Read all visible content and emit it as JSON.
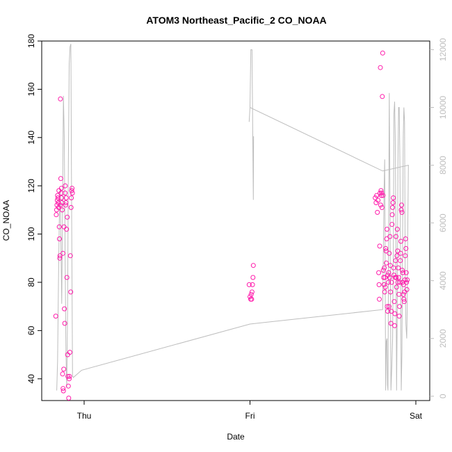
{
  "chart_data": {
    "type": "scatter",
    "title": "ATOM3 Northeast_Pacific_2 CO_NOAA",
    "xlabel": "Date",
    "ylabel": "CO_NOAA",
    "x_ticks": [
      "Thu",
      "Fri",
      "Sat"
    ],
    "ylim": [
      31,
      180
    ],
    "y_ticks": [
      40,
      60,
      80,
      100,
      120,
      140,
      160,
      180
    ],
    "y2lim": [
      -150,
      12300
    ],
    "y2_ticks": [
      0,
      2000,
      4000,
      6000,
      8000,
      10000,
      12000
    ],
    "colors": {
      "points": "#ff1aaa",
      "line": "#bdbdbd",
      "axis": "#000000",
      "right_axis": "#bdbdbd"
    },
    "series": [
      {
        "type": "scatter",
        "axis": "left",
        "values": [
          [
            -0.171,
            66
          ],
          [
            -0.168,
            108
          ],
          [
            -0.166,
            110
          ],
          [
            -0.164,
            112
          ],
          [
            -0.162,
            114
          ],
          [
            -0.16,
            116
          ],
          [
            -0.158,
            115
          ],
          [
            -0.156,
            113
          ],
          [
            -0.154,
            111
          ],
          [
            -0.152,
            118
          ],
          [
            -0.15,
            103
          ],
          [
            -0.149,
            98
          ],
          [
            -0.147,
            90
          ],
          [
            -0.146,
            91
          ],
          [
            -0.144,
            112
          ],
          [
            -0.143,
            156
          ],
          [
            -0.141,
            123
          ],
          [
            -0.139,
            117
          ],
          [
            -0.137,
            119
          ],
          [
            -0.136,
            115
          ],
          [
            -0.134,
            113
          ],
          [
            -0.132,
            110
          ],
          [
            -0.13,
            42
          ],
          [
            -0.128,
            92
          ],
          [
            -0.127,
            36
          ],
          [
            -0.125,
            35
          ],
          [
            -0.123,
            44
          ],
          [
            -0.121,
            103
          ],
          [
            -0.119,
            69
          ],
          [
            -0.117,
            63
          ],
          [
            -0.115,
            117
          ],
          [
            -0.114,
            120
          ],
          [
            -0.112,
            112
          ],
          [
            -0.11,
            113
          ],
          [
            -0.108,
            115
          ],
          [
            -0.106,
            102
          ],
          [
            -0.104,
            82
          ],
          [
            -0.102,
            107
          ],
          [
            -0.1,
            50
          ],
          [
            -0.098,
            41
          ],
          [
            -0.095,
            37
          ],
          [
            -0.093,
            32
          ],
          [
            -0.09,
            40
          ],
          [
            -0.088,
            41
          ],
          [
            -0.086,
            51
          ],
          [
            -0.083,
            91
          ],
          [
            -0.081,
            76
          ],
          [
            -0.079,
            111
          ],
          [
            -0.077,
            115
          ],
          [
            -0.075,
            118
          ],
          [
            -0.073,
            119
          ],
          [
            -0.071,
            117
          ],
          [
            0.995,
            79
          ],
          [
            1.0,
            74
          ],
          [
            1.004,
            73
          ],
          [
            1.007,
            75
          ],
          [
            1.01,
            73
          ],
          [
            1.012,
            76
          ],
          [
            1.015,
            79
          ],
          [
            1.018,
            82
          ],
          [
            1.02,
            87
          ],
          [
            1.755,
            115
          ],
          [
            1.76,
            113
          ],
          [
            1.764,
            116
          ],
          [
            1.768,
            109
          ],
          [
            1.772,
            114
          ],
          [
            1.776,
            84
          ],
          [
            1.778,
            79
          ],
          [
            1.78,
            73
          ],
          [
            1.782,
            95
          ],
          [
            1.784,
            117
          ],
          [
            1.786,
            169
          ],
          [
            1.788,
            112
          ],
          [
            1.79,
            118
          ],
          [
            1.792,
            116
          ],
          [
            1.794,
            117
          ],
          [
            1.796,
            111
          ],
          [
            1.798,
            157
          ],
          [
            1.8,
            175
          ],
          [
            1.802,
            116
          ],
          [
            1.804,
            85
          ],
          [
            1.806,
            82
          ],
          [
            1.808,
            79
          ],
          [
            1.81,
            86
          ],
          [
            1.812,
            76
          ],
          [
            1.814,
            82
          ],
          [
            1.816,
            78
          ],
          [
            1.818,
            94
          ],
          [
            1.82,
            93
          ],
          [
            1.822,
            88
          ],
          [
            1.824,
            98
          ],
          [
            1.826,
            102
          ],
          [
            1.828,
            70
          ],
          [
            1.83,
            68
          ],
          [
            1.832,
            83
          ],
          [
            1.834,
            80
          ],
          [
            1.836,
            84
          ],
          [
            1.838,
            70
          ],
          [
            1.84,
            92
          ],
          [
            1.842,
            82
          ],
          [
            1.844,
            99
          ],
          [
            1.846,
            87
          ],
          [
            1.848,
            76
          ],
          [
            1.85,
            63
          ],
          [
            1.852,
            68
          ],
          [
            1.854,
            80
          ],
          [
            1.856,
            104
          ],
          [
            1.858,
            108
          ],
          [
            1.86,
            111
          ],
          [
            1.862,
            113
          ],
          [
            1.864,
            115
          ],
          [
            1.866,
            86
          ],
          [
            1.868,
            83
          ],
          [
            1.87,
            72
          ],
          [
            1.872,
            62
          ],
          [
            1.874,
            67
          ],
          [
            1.876,
            82
          ],
          [
            1.878,
            89
          ],
          [
            1.88,
            99
          ],
          [
            1.882,
            82
          ],
          [
            1.884,
            78
          ],
          [
            1.886,
            91
          ],
          [
            1.888,
            102
          ],
          [
            1.89,
            93
          ],
          [
            1.892,
            80
          ],
          [
            1.894,
            86
          ],
          [
            1.896,
            82
          ],
          [
            1.898,
            75
          ],
          [
            1.9,
            66
          ],
          [
            1.902,
            70
          ],
          [
            1.904,
            80
          ],
          [
            1.906,
            89
          ],
          [
            1.908,
            92
          ],
          [
            1.91,
            97
          ],
          [
            1.912,
            110
          ],
          [
            1.914,
            112
          ],
          [
            1.916,
            109
          ],
          [
            1.918,
            85
          ],
          [
            1.92,
            80
          ],
          [
            1.922,
            84
          ],
          [
            1.924,
            75
          ],
          [
            1.926,
            79
          ],
          [
            1.928,
            73
          ],
          [
            1.93,
            72
          ],
          [
            1.932,
            76
          ],
          [
            1.934,
            81
          ],
          [
            1.936,
            91
          ],
          [
            1.938,
            98
          ],
          [
            1.94,
            94
          ],
          [
            1.942,
            84
          ],
          [
            1.944,
            80
          ],
          [
            1.946,
            77
          ],
          [
            1.948,
            81
          ]
        ]
      },
      {
        "type": "line",
        "axis": "right",
        "values": [
          [
            -0.165,
            200
          ],
          [
            -0.16,
            1200
          ],
          [
            -0.155,
            3800
          ],
          [
            -0.15,
            6000
          ],
          [
            -0.145,
            7200
          ],
          [
            -0.14,
            5200
          ],
          [
            -0.135,
            3200
          ],
          [
            -0.13,
            6800
          ],
          [
            -0.125,
            10400
          ],
          [
            -0.12,
            9000
          ],
          [
            -0.115,
            5000
          ],
          [
            -0.11,
            1500
          ],
          [
            -0.105,
            300
          ],
          [
            -0.1,
            3000
          ],
          [
            -0.095,
            8000
          ],
          [
            -0.09,
            11500
          ],
          [
            -0.085,
            12100
          ],
          [
            -0.08,
            12200
          ],
          [
            -0.075,
            6000
          ],
          [
            -0.07,
            700
          ],
          [
            -0.065,
            650
          ],
          [
            -0.015,
            900
          ],
          [
            1.0,
            2500
          ],
          [
            1.8,
            3000
          ],
          [
            1.808,
            7000
          ],
          [
            1.812,
            8200
          ],
          [
            1.818,
            200
          ],
          [
            1.822,
            1900
          ],
          [
            1.826,
            2000
          ],
          [
            1.829,
            400
          ],
          [
            1.832,
            200
          ],
          [
            1.836,
            6000
          ],
          [
            1.84,
            10500
          ],
          [
            1.845,
            6000
          ],
          [
            1.85,
            200
          ],
          [
            1.855,
            1000
          ],
          [
            1.86,
            2000
          ],
          [
            1.864,
            5000
          ],
          [
            1.868,
            9800
          ],
          [
            1.872,
            10200
          ],
          [
            1.876,
            9000
          ],
          [
            1.88,
            5000
          ],
          [
            1.884,
            200
          ],
          [
            1.888,
            3000
          ],
          [
            1.892,
            8000
          ],
          [
            1.896,
            10000
          ],
          [
            1.9,
            10000
          ],
          [
            1.904,
            8000
          ],
          [
            1.908,
            4000
          ],
          [
            1.912,
            200
          ],
          [
            1.916,
            1500
          ],
          [
            1.92,
            5000
          ],
          [
            1.924,
            9000
          ],
          [
            1.928,
            10000
          ],
          [
            1.932,
            9500
          ],
          [
            1.936,
            4000
          ],
          [
            1.94,
            2500
          ],
          [
            1.945,
            2000
          ],
          [
            1.948,
            3000
          ],
          [
            1.95,
            5000
          ],
          [
            1.955,
            8000
          ],
          [
            1.8,
            7800
          ],
          [
            1.0,
            10000
          ],
          [
            0.995,
            9500
          ],
          [
            1.0,
            10000
          ],
          [
            1.005,
            12000
          ],
          [
            1.012,
            12000
          ],
          [
            1.02,
            6800
          ],
          [
            1.022,
            9000
          ]
        ]
      }
    ]
  }
}
